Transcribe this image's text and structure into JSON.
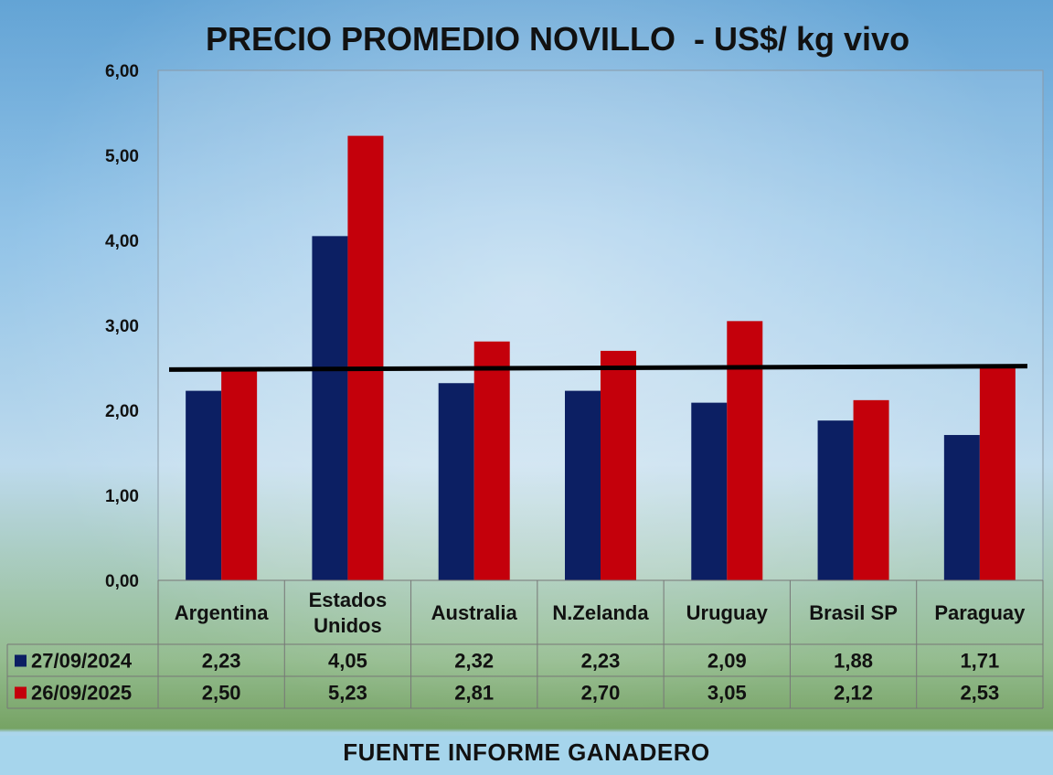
{
  "chart_data": {
    "type": "bar",
    "title": "PRECIO PROMEDIO NOVILLO  - US$/ kg vivo",
    "categories": [
      "Argentina",
      "Estados Unidos",
      "Australia",
      "N.Zelanda",
      "Uruguay",
      "Brasil SP",
      "Paraguay"
    ],
    "category_lines": [
      [
        "Argentina"
      ],
      [
        "Estados",
        "Unidos"
      ],
      [
        "Australia"
      ],
      [
        "N.Zelanda"
      ],
      [
        "Uruguay"
      ],
      [
        "Brasil SP"
      ],
      [
        "Paraguay"
      ]
    ],
    "series": [
      {
        "name": "27/09/2024",
        "color": "#0c1f63",
        "values": [
          2.23,
          4.05,
          2.32,
          2.23,
          2.09,
          1.88,
          1.71
        ],
        "labels": [
          "2,23",
          "4,05",
          "2,32",
          "2,23",
          "2,09",
          "1,88",
          "1,71"
        ]
      },
      {
        "name": "26/09/2025",
        "color": "#c4000b",
        "values": [
          2.5,
          5.23,
          2.81,
          2.7,
          3.05,
          2.12,
          2.53
        ],
        "labels": [
          "2,50",
          "5,23",
          "2,81",
          "2,70",
          "3,05",
          "2,12",
          "2,53"
        ]
      }
    ],
    "ylim": [
      0,
      6
    ],
    "yticks": [
      "0,00",
      "1,00",
      "2,00",
      "3,00",
      "4,00",
      "5,00",
      "6,00"
    ],
    "reference_line": {
      "color": "#000000",
      "start": 2.48,
      "end": 2.52
    },
    "data_table": true,
    "xlabel": "",
    "ylabel": ""
  },
  "footer": "FUENTE INFORME GANADERO"
}
